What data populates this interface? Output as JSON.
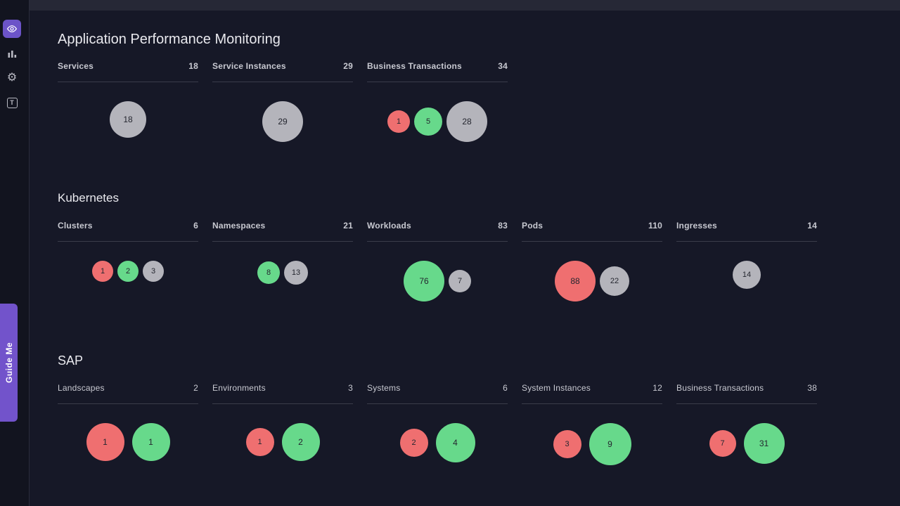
{
  "sidebar": {
    "icons": [
      {
        "name": "eye-icon",
        "active": true
      },
      {
        "name": "bar-chart-icon",
        "active": false
      },
      {
        "name": "gear-icon",
        "active": false
      },
      {
        "name": "text-tool-icon",
        "active": false
      }
    ],
    "guide_me": {
      "label": "Guide Me",
      "color": "#7253cb"
    }
  },
  "colors": {
    "critical": "#ef6f70",
    "healthy": "#67d98b",
    "neutral": "#b4b4bb",
    "accent": "#6c54c8"
  },
  "sections": [
    {
      "id": "apm",
      "title": "Application Performance Monitoring",
      "columns": [
        {
          "label": "Services",
          "count": "18",
          "bubbles": [
            {
              "value": "18",
              "status": "neutral",
              "r": 26
            }
          ]
        },
        {
          "label": "Service Instances",
          "count": "29",
          "bubbles": [
            {
              "value": "29",
              "status": "neutral",
              "r": 29
            }
          ]
        },
        {
          "label": "Business Transactions",
          "count": "34",
          "bubbles": [
            {
              "value": "1",
              "status": "critical",
              "r": 16
            },
            {
              "value": "5",
              "status": "healthy",
              "r": 20
            },
            {
              "value": "28",
              "status": "neutral",
              "r": 29
            }
          ]
        }
      ]
    },
    {
      "id": "kubernetes",
      "title": "Kubernetes",
      "columns": [
        {
          "label": "Clusters",
          "count": "6",
          "bubbles": [
            {
              "value": "1",
              "status": "critical",
              "r": 15
            },
            {
              "value": "2",
              "status": "healthy",
              "r": 15
            },
            {
              "value": "3",
              "status": "neutral",
              "r": 15
            }
          ]
        },
        {
          "label": "Namespaces",
          "count": "21",
          "bubbles": [
            {
              "value": "8",
              "status": "healthy",
              "r": 16
            },
            {
              "value": "13",
              "status": "neutral",
              "r": 17
            }
          ]
        },
        {
          "label": "Workloads",
          "count": "83",
          "bubbles": [
            {
              "value": "76",
              "status": "healthy",
              "r": 29
            },
            {
              "value": "7",
              "status": "neutral",
              "r": 16
            }
          ]
        },
        {
          "label": "Pods",
          "count": "110",
          "bubbles": [
            {
              "value": "88",
              "status": "critical",
              "r": 29
            },
            {
              "value": "22",
              "status": "neutral",
              "r": 21
            }
          ]
        },
        {
          "label": "Ingresses",
          "count": "14",
          "bubbles": [
            {
              "value": "14",
              "status": "neutral",
              "r": 20
            }
          ]
        }
      ]
    },
    {
      "id": "sap",
      "title": "SAP",
      "columns": [
        {
          "label": "Landscapes",
          "count": "2",
          "bubbles": [
            {
              "value": "1",
              "status": "critical",
              "r": 27
            },
            {
              "value": "1",
              "status": "healthy",
              "r": 27
            }
          ]
        },
        {
          "label": "Environments",
          "count": "3",
          "bubbles": [
            {
              "value": "1",
              "status": "critical",
              "r": 20
            },
            {
              "value": "2",
              "status": "healthy",
              "r": 27
            }
          ]
        },
        {
          "label": "Systems",
          "count": "6",
          "bubbles": [
            {
              "value": "2",
              "status": "critical",
              "r": 20
            },
            {
              "value": "4",
              "status": "healthy",
              "r": 28
            }
          ]
        },
        {
          "label": "System Instances",
          "count": "12",
          "bubbles": [
            {
              "value": "3",
              "status": "critical",
              "r": 20
            },
            {
              "value": "9",
              "status": "healthy",
              "r": 30
            }
          ]
        },
        {
          "label": "Business Transactions",
          "count": "38",
          "bubbles": [
            {
              "value": "7",
              "status": "critical",
              "r": 19
            },
            {
              "value": "31",
              "status": "healthy",
              "r": 29
            }
          ]
        }
      ]
    }
  ]
}
